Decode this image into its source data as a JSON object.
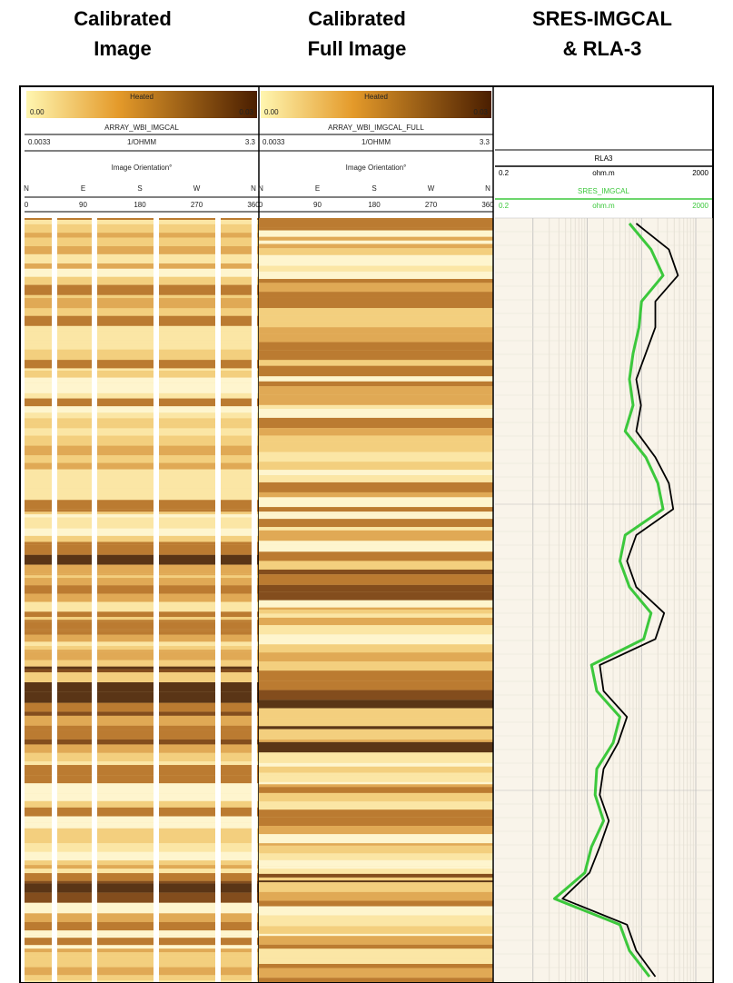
{
  "titles": [
    [
      "Calibrated",
      "Image"
    ],
    [
      "Calibrated",
      "Full Image"
    ],
    [
      "SRES-IMGCAL",
      "& RLA-3"
    ]
  ],
  "image_tracks": [
    {
      "palette": "Heated",
      "min": "0.00",
      "max": "0.03",
      "curve": "ARRAY_WBI_IMGCAL",
      "scale_min": 0.0033,
      "unit": "1/OHMM",
      "scale_max": 3.3,
      "orientation_label": "Image Orientation°",
      "directions": [
        "N",
        "E",
        "S",
        "W",
        "N"
      ],
      "angles": [
        0,
        90,
        180,
        270,
        360
      ]
    },
    {
      "palette": "Heated",
      "min": "0.00",
      "max": "0.03",
      "curve": "ARRAY_WBI_IMGCAL_FULL",
      "scale_min": 0.0033,
      "unit": "1/OHMM",
      "scale_max": 3.3,
      "orientation_label": "Image Orientation°",
      "directions": [
        "N",
        "E",
        "S",
        "W",
        "N"
      ],
      "angles": [
        0,
        90,
        180,
        270,
        360
      ]
    }
  ],
  "log_track": {
    "curves": [
      {
        "name": "RLA3",
        "color": "#000000",
        "scale": [
          0.2,
          2000
        ],
        "unit": "ohm.m",
        "values": [
          80,
          320,
          470,
          180,
          180,
          120,
          80,
          98,
          80,
          180,
          320,
          385,
          80,
          54,
          80,
          261,
          180,
          17,
          20,
          54,
          37,
          20,
          17,
          25,
          17,
          11,
          3.5,
          54,
          80,
          180
        ]
      },
      {
        "name": "SRES_IMGCAL",
        "color": "#3cc83c",
        "scale": [
          0.2,
          2000
        ],
        "unit": "ohm.m",
        "values": [
          60,
          150,
          250,
          100,
          90,
          70,
          60,
          70,
          50,
          120,
          200,
          250,
          50,
          40,
          60,
          150,
          110,
          12,
          15,
          40,
          30,
          15,
          14,
          20,
          12,
          9,
          2.5,
          40,
          60,
          140
        ]
      }
    ]
  }
}
